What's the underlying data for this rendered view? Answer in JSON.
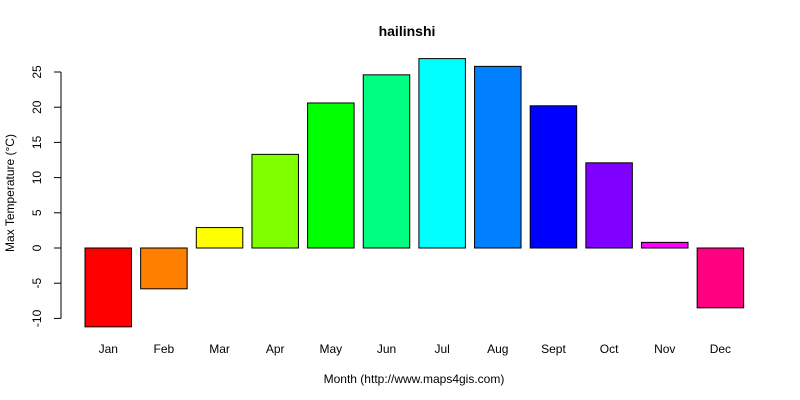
{
  "chart_data": {
    "type": "bar",
    "title": "hailinshi",
    "xlabel": "Month (http://www.maps4gis.com)",
    "ylabel": "Max Temperature (°C)",
    "categories": [
      "Jan",
      "Feb",
      "Mar",
      "Apr",
      "May",
      "Jun",
      "Jul",
      "Aug",
      "Sept",
      "Oct",
      "Nov",
      "Dec"
    ],
    "values": [
      -11.2,
      -5.8,
      2.9,
      13.3,
      20.6,
      24.6,
      26.9,
      25.8,
      20.2,
      12.1,
      0.8,
      -8.5
    ],
    "colors": [
      "#ff0000",
      "#ff8000",
      "#ffff00",
      "#80ff00",
      "#00ff00",
      "#00ff80",
      "#00ffff",
      "#0080ff",
      "#0000ff",
      "#8000ff",
      "#ff00ff",
      "#ff0080"
    ],
    "yticks": [
      -10,
      -5,
      0,
      5,
      10,
      15,
      20,
      25
    ],
    "ylim": [
      -11.2,
      26.9
    ],
    "grid": false,
    "legend": "none"
  }
}
